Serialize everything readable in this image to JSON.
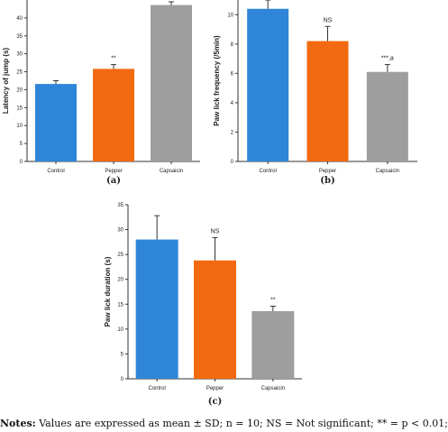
{
  "chart_data": [
    {
      "type": "bar",
      "panel_label": "(a)",
      "categories": [
        "Control",
        "Pepper",
        "Capsaicin"
      ],
      "values": [
        21.6,
        25.8,
        43.6
      ],
      "errors": [
        0.9,
        1.2,
        0.9
      ],
      "annotations": [
        "",
        "**",
        ""
      ],
      "ylabel": "Latency of jump (s)",
      "ylim": [
        0,
        45
      ],
      "yticks": [
        "0",
        "5",
        "10",
        "15",
        "20",
        "25",
        "30",
        "35",
        "40"
      ],
      "colors": [
        "#2f86d9",
        "#f26a10",
        "#9e9e9e"
      ]
    },
    {
      "type": "bar",
      "panel_label": "(b)",
      "categories": [
        "Control",
        "Pepper",
        "Capsaicin"
      ],
      "values": [
        10.4,
        8.2,
        6.1
      ],
      "errors": [
        0.6,
        1.0,
        0.5
      ],
      "annotations": [
        "",
        "NS",
        "***,a"
      ],
      "ylabel": "Paw lick frequency (/5min)",
      "ylim": [
        0,
        11
      ],
      "yticks": [
        "0",
        "2",
        "4",
        "6",
        "8",
        "10"
      ],
      "colors": [
        "#2f86d9",
        "#f26a10",
        "#9e9e9e"
      ]
    },
    {
      "type": "bar",
      "panel_label": "(c)",
      "categories": [
        "Control",
        "Pepper",
        "Capsaicin"
      ],
      "values": [
        28.0,
        23.8,
        13.6
      ],
      "errors": [
        4.8,
        4.6,
        1.0
      ],
      "annotations": [
        "",
        "NS",
        "**"
      ],
      "ylabel": "Paw lick duration (s)",
      "ylim": [
        0,
        35
      ],
      "yticks": [
        "0",
        "5",
        "10",
        "15",
        "20",
        "25",
        "30",
        "35"
      ],
      "colors": [
        "#2f86d9",
        "#f26a10",
        "#9e9e9e"
      ]
    }
  ],
  "notes": {
    "label": "Notes:",
    "text": "Values are expressed as mean ± SD; n = 10; NS = Not significant; ** = p < 0.01;"
  }
}
